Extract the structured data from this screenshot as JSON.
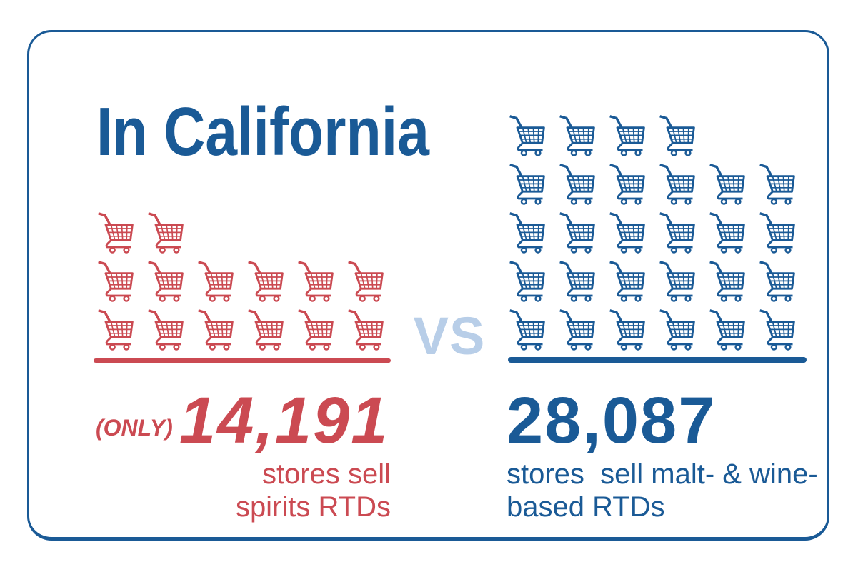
{
  "title": "In California",
  "vs_label": "VS",
  "colors": {
    "accent_blue": "#1a5a96",
    "accent_red": "#cb4a52",
    "vs_blue": "#b8cee8",
    "background": "#ffffff"
  },
  "left": {
    "qualifier": "(ONLY)",
    "value": "14,191",
    "label": "stores sell\nspirits RTDs",
    "cart_rows": [
      2,
      6,
      6
    ],
    "cart_count": 14
  },
  "right": {
    "value": "28,087",
    "label": "stores  sell malt- & wine-\nbased RTDs",
    "cart_rows": [
      4,
      6,
      6,
      6,
      6
    ],
    "cart_count": 28
  },
  "chart_data": {
    "type": "bar",
    "variant": "pictogram",
    "title": "In California",
    "categories": [
      "stores sell spirits RTDs",
      "stores sell malt- & wine-based RTDs"
    ],
    "values": [
      14191,
      28087
    ],
    "icon": "shopping-cart",
    "icon_counts": [
      14,
      28
    ],
    "icon_rows": [
      [
        2,
        6,
        6
      ],
      [
        4,
        6,
        6,
        6,
        6
      ]
    ],
    "colors": [
      "#cb4a52",
      "#1a5a96"
    ],
    "annotations": [
      "(ONLY)",
      "VS"
    ],
    "legend_position": "none",
    "grid": false
  }
}
